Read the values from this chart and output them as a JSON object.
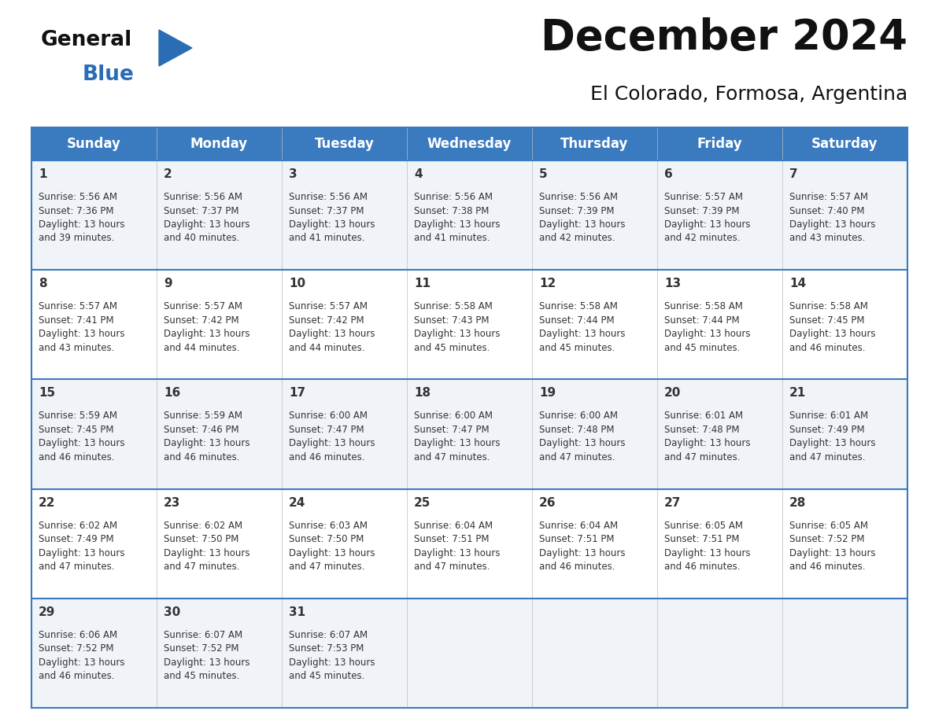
{
  "title": "December 2024",
  "subtitle": "El Colorado, Formosa, Argentina",
  "header_color": "#3a7abf",
  "header_text_color": "#ffffff",
  "row_bg_odd": "#f0f4f8",
  "row_bg_even": "#ffffff",
  "border_color": "#3a7abf",
  "text_color": "#333333",
  "day_names": [
    "Sunday",
    "Monday",
    "Tuesday",
    "Wednesday",
    "Thursday",
    "Friday",
    "Saturday"
  ],
  "days": [
    {
      "day": 1,
      "col": 0,
      "row": 0,
      "sunrise": "5:56 AM",
      "sunset": "7:36 PM",
      "daylight_h": "13 hours",
      "daylight_m": "and 39 minutes."
    },
    {
      "day": 2,
      "col": 1,
      "row": 0,
      "sunrise": "5:56 AM",
      "sunset": "7:37 PM",
      "daylight_h": "13 hours",
      "daylight_m": "and 40 minutes."
    },
    {
      "day": 3,
      "col": 2,
      "row": 0,
      "sunrise": "5:56 AM",
      "sunset": "7:37 PM",
      "daylight_h": "13 hours",
      "daylight_m": "and 41 minutes."
    },
    {
      "day": 4,
      "col": 3,
      "row": 0,
      "sunrise": "5:56 AM",
      "sunset": "7:38 PM",
      "daylight_h": "13 hours",
      "daylight_m": "and 41 minutes."
    },
    {
      "day": 5,
      "col": 4,
      "row": 0,
      "sunrise": "5:56 AM",
      "sunset": "7:39 PM",
      "daylight_h": "13 hours",
      "daylight_m": "and 42 minutes."
    },
    {
      "day": 6,
      "col": 5,
      "row": 0,
      "sunrise": "5:57 AM",
      "sunset": "7:39 PM",
      "daylight_h": "13 hours",
      "daylight_m": "and 42 minutes."
    },
    {
      "day": 7,
      "col": 6,
      "row": 0,
      "sunrise": "5:57 AM",
      "sunset": "7:40 PM",
      "daylight_h": "13 hours",
      "daylight_m": "and 43 minutes."
    },
    {
      "day": 8,
      "col": 0,
      "row": 1,
      "sunrise": "5:57 AM",
      "sunset": "7:41 PM",
      "daylight_h": "13 hours",
      "daylight_m": "and 43 minutes."
    },
    {
      "day": 9,
      "col": 1,
      "row": 1,
      "sunrise": "5:57 AM",
      "sunset": "7:42 PM",
      "daylight_h": "13 hours",
      "daylight_m": "and 44 minutes."
    },
    {
      "day": 10,
      "col": 2,
      "row": 1,
      "sunrise": "5:57 AM",
      "sunset": "7:42 PM",
      "daylight_h": "13 hours",
      "daylight_m": "and 44 minutes."
    },
    {
      "day": 11,
      "col": 3,
      "row": 1,
      "sunrise": "5:58 AM",
      "sunset": "7:43 PM",
      "daylight_h": "13 hours",
      "daylight_m": "and 45 minutes."
    },
    {
      "day": 12,
      "col": 4,
      "row": 1,
      "sunrise": "5:58 AM",
      "sunset": "7:44 PM",
      "daylight_h": "13 hours",
      "daylight_m": "and 45 minutes."
    },
    {
      "day": 13,
      "col": 5,
      "row": 1,
      "sunrise": "5:58 AM",
      "sunset": "7:44 PM",
      "daylight_h": "13 hours",
      "daylight_m": "and 45 minutes."
    },
    {
      "day": 14,
      "col": 6,
      "row": 1,
      "sunrise": "5:58 AM",
      "sunset": "7:45 PM",
      "daylight_h": "13 hours",
      "daylight_m": "and 46 minutes."
    },
    {
      "day": 15,
      "col": 0,
      "row": 2,
      "sunrise": "5:59 AM",
      "sunset": "7:45 PM",
      "daylight_h": "13 hours",
      "daylight_m": "and 46 minutes."
    },
    {
      "day": 16,
      "col": 1,
      "row": 2,
      "sunrise": "5:59 AM",
      "sunset": "7:46 PM",
      "daylight_h": "13 hours",
      "daylight_m": "and 46 minutes."
    },
    {
      "day": 17,
      "col": 2,
      "row": 2,
      "sunrise": "6:00 AM",
      "sunset": "7:47 PM",
      "daylight_h": "13 hours",
      "daylight_m": "and 46 minutes."
    },
    {
      "day": 18,
      "col": 3,
      "row": 2,
      "sunrise": "6:00 AM",
      "sunset": "7:47 PM",
      "daylight_h": "13 hours",
      "daylight_m": "and 47 minutes."
    },
    {
      "day": 19,
      "col": 4,
      "row": 2,
      "sunrise": "6:00 AM",
      "sunset": "7:48 PM",
      "daylight_h": "13 hours",
      "daylight_m": "and 47 minutes."
    },
    {
      "day": 20,
      "col": 5,
      "row": 2,
      "sunrise": "6:01 AM",
      "sunset": "7:48 PM",
      "daylight_h": "13 hours",
      "daylight_m": "and 47 minutes."
    },
    {
      "day": 21,
      "col": 6,
      "row": 2,
      "sunrise": "6:01 AM",
      "sunset": "7:49 PM",
      "daylight_h": "13 hours",
      "daylight_m": "and 47 minutes."
    },
    {
      "day": 22,
      "col": 0,
      "row": 3,
      "sunrise": "6:02 AM",
      "sunset": "7:49 PM",
      "daylight_h": "13 hours",
      "daylight_m": "and 47 minutes."
    },
    {
      "day": 23,
      "col": 1,
      "row": 3,
      "sunrise": "6:02 AM",
      "sunset": "7:50 PM",
      "daylight_h": "13 hours",
      "daylight_m": "and 47 minutes."
    },
    {
      "day": 24,
      "col": 2,
      "row": 3,
      "sunrise": "6:03 AM",
      "sunset": "7:50 PM",
      "daylight_h": "13 hours",
      "daylight_m": "and 47 minutes."
    },
    {
      "day": 25,
      "col": 3,
      "row": 3,
      "sunrise": "6:04 AM",
      "sunset": "7:51 PM",
      "daylight_h": "13 hours",
      "daylight_m": "and 47 minutes."
    },
    {
      "day": 26,
      "col": 4,
      "row": 3,
      "sunrise": "6:04 AM",
      "sunset": "7:51 PM",
      "daylight_h": "13 hours",
      "daylight_m": "and 46 minutes."
    },
    {
      "day": 27,
      "col": 5,
      "row": 3,
      "sunrise": "6:05 AM",
      "sunset": "7:51 PM",
      "daylight_h": "13 hours",
      "daylight_m": "and 46 minutes."
    },
    {
      "day": 28,
      "col": 6,
      "row": 3,
      "sunrise": "6:05 AM",
      "sunset": "7:52 PM",
      "daylight_h": "13 hours",
      "daylight_m": "and 46 minutes."
    },
    {
      "day": 29,
      "col": 0,
      "row": 4,
      "sunrise": "6:06 AM",
      "sunset": "7:52 PM",
      "daylight_h": "13 hours",
      "daylight_m": "and 46 minutes."
    },
    {
      "day": 30,
      "col": 1,
      "row": 4,
      "sunrise": "6:07 AM",
      "sunset": "7:52 PM",
      "daylight_h": "13 hours",
      "daylight_m": "and 45 minutes."
    },
    {
      "day": 31,
      "col": 2,
      "row": 4,
      "sunrise": "6:07 AM",
      "sunset": "7:53 PM",
      "daylight_h": "13 hours",
      "daylight_m": "and 45 minutes."
    }
  ],
  "logo_text_color": "#111111",
  "logo_blue_color": "#2a6db5",
  "logo_triangle_color": "#2a6db5",
  "title_fontsize": 38,
  "subtitle_fontsize": 18,
  "header_fontsize": 12,
  "day_num_fontsize": 11,
  "cell_text_fontsize": 8.5
}
